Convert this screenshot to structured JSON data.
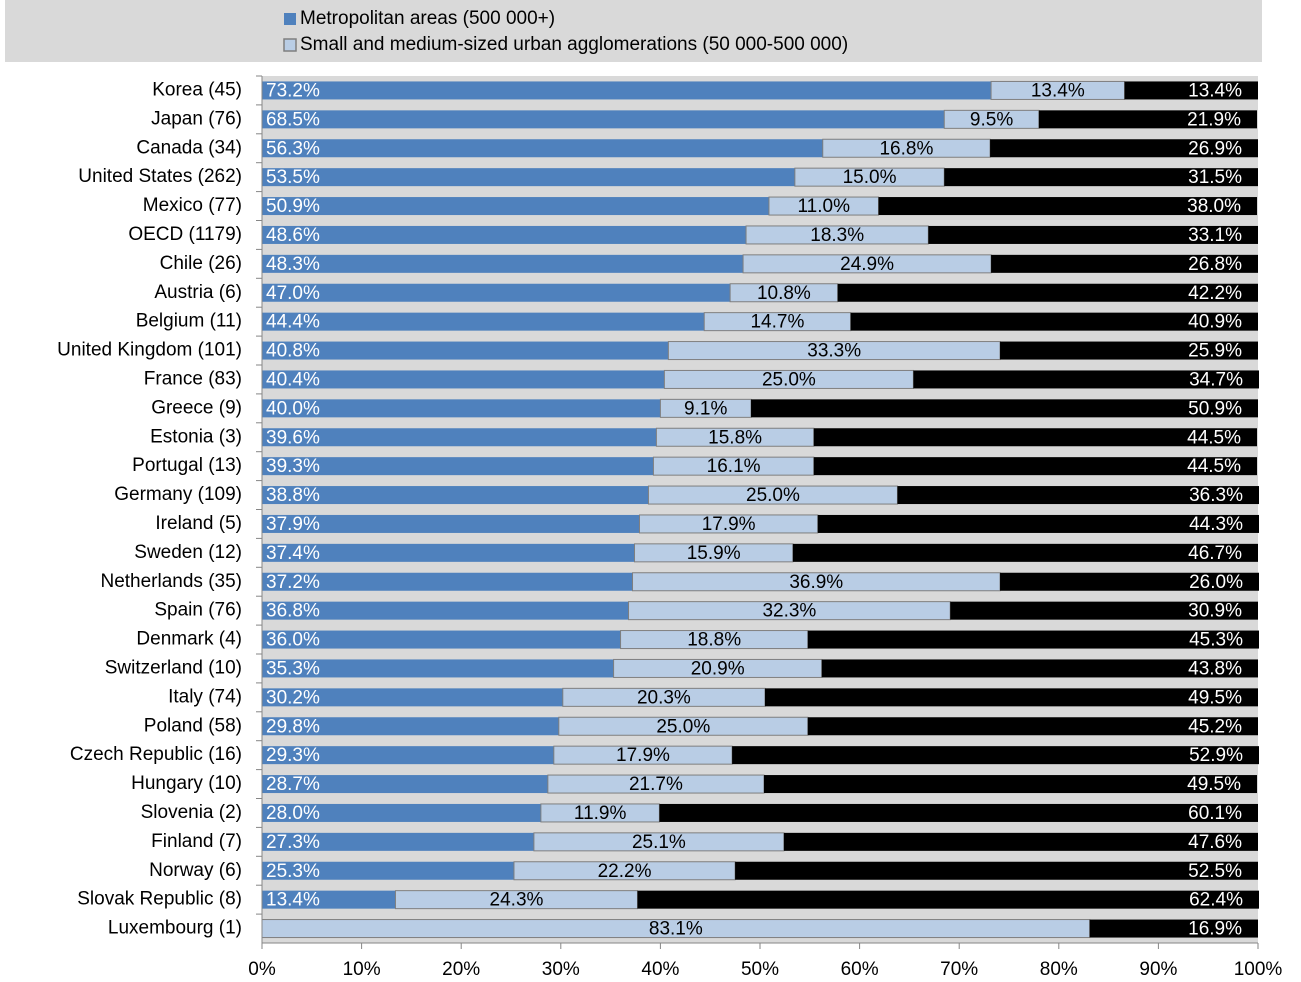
{
  "chart_data": {
    "type": "stacked-barh",
    "categories": [
      "Korea (45)",
      "Japan (76)",
      "Canada (34)",
      "United States (262)",
      "Mexico (77)",
      "OECD (1179)",
      "Chile (26)",
      "Austria (6)",
      "Belgium (11)",
      "United Kingdom (101)",
      "France (83)",
      "Greece (9)",
      "Estonia (3)",
      "Portugal (13)",
      "Germany (109)",
      "Ireland (5)",
      "Sweden (12)",
      "Netherlands (35)",
      "Spain (76)",
      "Denmark (4)",
      "Switzerland (10)",
      "Italy (74)",
      "Poland (58)",
      "Czech Republic (16)",
      "Hungary (10)",
      "Slovenia (2)",
      "Finland (7)",
      "Norway (6)",
      "Slovak Republic (8)",
      "Luxembourg (1)"
    ],
    "series": [
      {
        "name": "Metropolitan areas (500 000+)",
        "color": "#4f81bd",
        "values": [
          73.2,
          68.5,
          56.3,
          53.5,
          50.9,
          48.6,
          48.3,
          47.0,
          44.4,
          40.8,
          40.4,
          40.0,
          39.6,
          39.3,
          38.8,
          37.9,
          37.4,
          37.2,
          36.8,
          36.0,
          35.3,
          30.2,
          29.8,
          29.3,
          28.7,
          28.0,
          27.3,
          25.3,
          13.4,
          0
        ],
        "value_labels": [
          "73.2%",
          "68.5%",
          "56.3%",
          "53.5%",
          "50.9%",
          "48.6%",
          "48.3%",
          "47.0%",
          "44.4%",
          "40.8%",
          "40.4%",
          "40.0%",
          "39.6%",
          "39.3%",
          "38.8%",
          "37.9%",
          "37.4%",
          "37.2%",
          "36.8%",
          "36.0%",
          "35.3%",
          "30.2%",
          "29.8%",
          "29.3%",
          "28.7%",
          "28.0%",
          "27.3%",
          "25.3%",
          "13.4%",
          null
        ]
      },
      {
        "name": "Small and medium-sized urban agglomerations (50 000-500 000)",
        "color": "#b9cde5",
        "values": [
          13.4,
          9.5,
          16.8,
          15.0,
          11.0,
          18.3,
          24.9,
          10.8,
          14.7,
          33.3,
          25.0,
          9.1,
          15.8,
          16.1,
          25.0,
          17.9,
          15.9,
          36.9,
          32.3,
          18.8,
          20.9,
          20.3,
          25.0,
          17.9,
          21.7,
          11.9,
          25.1,
          22.2,
          24.3,
          83.1
        ],
        "value_labels": [
          "13.4%",
          "9.5%",
          "16.8%",
          "15.0%",
          "11.0%",
          "18.3%",
          "24.9%",
          "10.8%",
          "14.7%",
          "33.3%",
          "25.0%",
          "9.1%",
          "15.8%",
          "16.1%",
          "25.0%",
          "17.9%",
          "15.9%",
          "36.9%",
          "32.3%",
          "18.8%",
          "20.9%",
          "20.3%",
          "25.0%",
          "17.9%",
          "21.7%",
          "11.9%",
          "25.1%",
          "22.2%",
          "24.3%",
          "83.1%"
        ]
      },
      {
        "color": "#000000",
        "values": [
          13.4,
          21.9,
          26.9,
          31.5,
          38.0,
          33.1,
          26.8,
          42.2,
          40.9,
          25.9,
          34.7,
          50.9,
          44.5,
          44.5,
          36.3,
          44.3,
          46.7,
          26.0,
          30.9,
          45.3,
          43.8,
          49.5,
          45.2,
          52.9,
          49.5,
          60.1,
          47.6,
          52.5,
          62.4,
          16.9
        ],
        "value_labels": [
          "13.4%",
          "21.9%",
          "26.9%",
          "31.5%",
          "38.0%",
          "33.1%",
          "26.8%",
          "42.2%",
          "40.9%",
          "25.9%",
          "34.7%",
          "50.9%",
          "44.5%",
          "44.5%",
          "36.3%",
          "44.3%",
          "46.7%",
          "26.0%",
          "30.9%",
          "45.3%",
          "43.8%",
          "49.5%",
          "45.2%",
          "52.9%",
          "49.5%",
          "60.1%",
          "47.6%",
          "52.5%",
          "62.4%",
          "16.9%"
        ]
      }
    ],
    "xlim": [
      0,
      100
    ],
    "xticks": [
      {
        "value": 0,
        "label": "0%"
      },
      {
        "value": 10,
        "label": "10%"
      },
      {
        "value": 20,
        "label": "20%"
      },
      {
        "value": 30,
        "label": "30%"
      },
      {
        "value": 40,
        "label": "40%"
      },
      {
        "value": 50,
        "label": "50%"
      },
      {
        "value": 60,
        "label": "60%"
      },
      {
        "value": 70,
        "label": "70%"
      },
      {
        "value": 80,
        "label": "80%"
      },
      {
        "value": 90,
        "label": "90%"
      },
      {
        "value": 100,
        "label": "100%"
      }
    ],
    "legend": "top"
  }
}
